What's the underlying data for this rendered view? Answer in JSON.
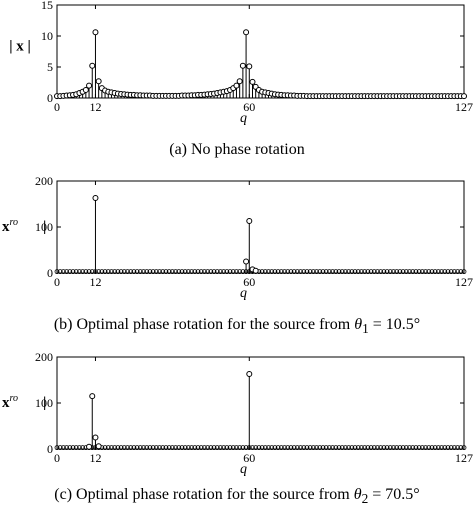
{
  "chart_data": [
    {
      "type": "stem",
      "caption": "(a) No phase rotation",
      "ylabel": "| x |",
      "xlabel": "q",
      "xlim": [
        0,
        127
      ],
      "ylim": [
        0,
        15
      ],
      "xticks": [
        0,
        12,
        60,
        127
      ],
      "yticks": [
        0,
        5,
        10,
        15
      ],
      "grid": false,
      "stems": [
        {
          "x": 0,
          "y": 0.3
        },
        {
          "x": 1,
          "y": 0.3
        },
        {
          "x": 2,
          "y": 0.35
        },
        {
          "x": 3,
          "y": 0.4
        },
        {
          "x": 4,
          "y": 0.45
        },
        {
          "x": 5,
          "y": 0.5
        },
        {
          "x": 6,
          "y": 0.6
        },
        {
          "x": 7,
          "y": 0.8
        },
        {
          "x": 8,
          "y": 1.0
        },
        {
          "x": 9,
          "y": 1.3
        },
        {
          "x": 10,
          "y": 2.0
        },
        {
          "x": 11,
          "y": 5.2
        },
        {
          "x": 12,
          "y": 10.6
        },
        {
          "x": 13,
          "y": 2.7
        },
        {
          "x": 14,
          "y": 1.6
        },
        {
          "x": 15,
          "y": 1.2
        },
        {
          "x": 16,
          "y": 1.0
        },
        {
          "x": 17,
          "y": 0.9
        },
        {
          "x": 18,
          "y": 0.8
        },
        {
          "x": 19,
          "y": 0.7
        },
        {
          "x": 20,
          "y": 0.65
        },
        {
          "x": 21,
          "y": 0.6
        },
        {
          "x": 22,
          "y": 0.55
        },
        {
          "x": 23,
          "y": 0.5
        },
        {
          "x": 24,
          "y": 0.5
        },
        {
          "x": 25,
          "y": 0.45
        },
        {
          "x": 26,
          "y": 0.45
        },
        {
          "x": 27,
          "y": 0.4
        },
        {
          "x": 28,
          "y": 0.4
        },
        {
          "x": 29,
          "y": 0.4
        },
        {
          "x": 30,
          "y": 0.35
        },
        {
          "x": 31,
          "y": 0.35
        },
        {
          "x": 32,
          "y": 0.35
        },
        {
          "x": 33,
          "y": 0.35
        },
        {
          "x": 34,
          "y": 0.35
        },
        {
          "x": 35,
          "y": 0.35
        },
        {
          "x": 36,
          "y": 0.35
        },
        {
          "x": 37,
          "y": 0.35
        },
        {
          "x": 38,
          "y": 0.35
        },
        {
          "x": 39,
          "y": 0.4
        },
        {
          "x": 40,
          "y": 0.4
        },
        {
          "x": 41,
          "y": 0.4
        },
        {
          "x": 42,
          "y": 0.45
        },
        {
          "x": 43,
          "y": 0.45
        },
        {
          "x": 44,
          "y": 0.5
        },
        {
          "x": 45,
          "y": 0.5
        },
        {
          "x": 46,
          "y": 0.55
        },
        {
          "x": 47,
          "y": 0.6
        },
        {
          "x": 48,
          "y": 0.65
        },
        {
          "x": 49,
          "y": 0.7
        },
        {
          "x": 50,
          "y": 0.8
        },
        {
          "x": 51,
          "y": 0.9
        },
        {
          "x": 52,
          "y": 1.0
        },
        {
          "x": 53,
          "y": 1.1
        },
        {
          "x": 54,
          "y": 1.3
        },
        {
          "x": 55,
          "y": 1.6
        },
        {
          "x": 56,
          "y": 2.0
        },
        {
          "x": 57,
          "y": 2.7
        },
        {
          "x": 58,
          "y": 5.2
        },
        {
          "x": 59,
          "y": 10.6
        },
        {
          "x": 60,
          "y": 5.1
        },
        {
          "x": 61,
          "y": 2.6
        },
        {
          "x": 62,
          "y": 1.8
        },
        {
          "x": 63,
          "y": 1.3
        },
        {
          "x": 64,
          "y": 1.0
        },
        {
          "x": 65,
          "y": 0.9
        },
        {
          "x": 66,
          "y": 0.8
        },
        {
          "x": 67,
          "y": 0.7
        },
        {
          "x": 68,
          "y": 0.6
        },
        {
          "x": 69,
          "y": 0.55
        },
        {
          "x": 70,
          "y": 0.5
        },
        {
          "x": 71,
          "y": 0.45
        },
        {
          "x": 72,
          "y": 0.45
        },
        {
          "x": 73,
          "y": 0.4
        },
        {
          "x": 74,
          "y": 0.4
        },
        {
          "x": 75,
          "y": 0.35
        },
        {
          "x": 76,
          "y": 0.35
        },
        {
          "x": 77,
          "y": 0.35
        },
        {
          "x": 78,
          "y": 0.3
        },
        {
          "x": 79,
          "y": 0.3
        },
        {
          "x": 80,
          "y": 0.3
        },
        {
          "x": 81,
          "y": 0.3
        },
        {
          "x": 82,
          "y": 0.3
        },
        {
          "x": 83,
          "y": 0.3
        },
        {
          "x": 84,
          "y": 0.3
        },
        {
          "x": 85,
          "y": 0.3
        },
        {
          "x": 86,
          "y": 0.3
        },
        {
          "x": 87,
          "y": 0.3
        },
        {
          "x": 88,
          "y": 0.3
        },
        {
          "x": 89,
          "y": 0.3
        },
        {
          "x": 90,
          "y": 0.3
        },
        {
          "x": 91,
          "y": 0.3
        },
        {
          "x": 92,
          "y": 0.3
        },
        {
          "x": 93,
          "y": 0.3
        },
        {
          "x": 94,
          "y": 0.3
        },
        {
          "x": 95,
          "y": 0.3
        },
        {
          "x": 96,
          "y": 0.3
        },
        {
          "x": 97,
          "y": 0.3
        },
        {
          "x": 98,
          "y": 0.3
        },
        {
          "x": 99,
          "y": 0.3
        },
        {
          "x": 100,
          "y": 0.3
        },
        {
          "x": 101,
          "y": 0.3
        },
        {
          "x": 102,
          "y": 0.3
        },
        {
          "x": 103,
          "y": 0.3
        },
        {
          "x": 104,
          "y": 0.3
        },
        {
          "x": 105,
          "y": 0.3
        },
        {
          "x": 106,
          "y": 0.3
        },
        {
          "x": 107,
          "y": 0.3
        },
        {
          "x": 108,
          "y": 0.3
        },
        {
          "x": 109,
          "y": 0.3
        },
        {
          "x": 110,
          "y": 0.3
        },
        {
          "x": 111,
          "y": 0.3
        },
        {
          "x": 112,
          "y": 0.3
        },
        {
          "x": 113,
          "y": 0.3
        },
        {
          "x": 114,
          "y": 0.3
        },
        {
          "x": 115,
          "y": 0.3
        },
        {
          "x": 116,
          "y": 0.3
        },
        {
          "x": 117,
          "y": 0.3
        },
        {
          "x": 118,
          "y": 0.3
        },
        {
          "x": 119,
          "y": 0.3
        },
        {
          "x": 120,
          "y": 0.3
        },
        {
          "x": 121,
          "y": 0.3
        },
        {
          "x": 122,
          "y": 0.3
        },
        {
          "x": 123,
          "y": 0.3
        },
        {
          "x": 124,
          "y": 0.3
        },
        {
          "x": 125,
          "y": 0.3
        },
        {
          "x": 126,
          "y": 0.3
        },
        {
          "x": 127,
          "y": 0.3
        }
      ]
    },
    {
      "type": "stem",
      "caption": "(b) Optimal phase rotation for the source from θ1 = 10.5°",
      "ylabel": "x^ro |",
      "xlabel": "q",
      "xlim": [
        0,
        127
      ],
      "ylim": [
        0,
        200
      ],
      "xticks": [
        0,
        12,
        60,
        127
      ],
      "yticks": [
        0,
        100,
        200
      ],
      "grid": false,
      "baseline": 3,
      "stems": [
        {
          "x": 12,
          "y": 163
        },
        {
          "x": 59,
          "y": 25
        },
        {
          "x": 60,
          "y": 113
        },
        {
          "x": 61,
          "y": 8
        },
        {
          "x": 62,
          "y": 5
        }
      ]
    },
    {
      "type": "stem",
      "caption": "(c) Optimal phase rotation for the source from θ2 = 70.5°",
      "ylabel": "x^ro |",
      "xlabel": "q",
      "xlim": [
        0,
        127
      ],
      "ylim": [
        0,
        200
      ],
      "xticks": [
        0,
        12,
        60,
        127
      ],
      "yticks": [
        0,
        100,
        200
      ],
      "grid": false,
      "baseline": 3,
      "stems": [
        {
          "x": 10,
          "y": 5
        },
        {
          "x": 11,
          "y": 115
        },
        {
          "x": 12,
          "y": 25
        },
        {
          "x": 13,
          "y": 6
        },
        {
          "x": 60,
          "y": 163
        }
      ]
    }
  ],
  "captions": {
    "a": "(a) No phase rotation",
    "b_prefix": "(b) Optimal phase rotation for the source from ",
    "b_theta": "θ",
    "b_sub": "1",
    "b_eq": " = 10.5°",
    "c_prefix": "(c) Optimal phase rotation for the source from ",
    "c_theta": "θ",
    "c_sub": "2",
    "c_eq": " = 70.5°"
  },
  "labels": {
    "x_a": "| x |",
    "x_bc_main": "x",
    "x_bc_sup": "ro",
    "x_bc_bar": "|",
    "q": "q"
  }
}
